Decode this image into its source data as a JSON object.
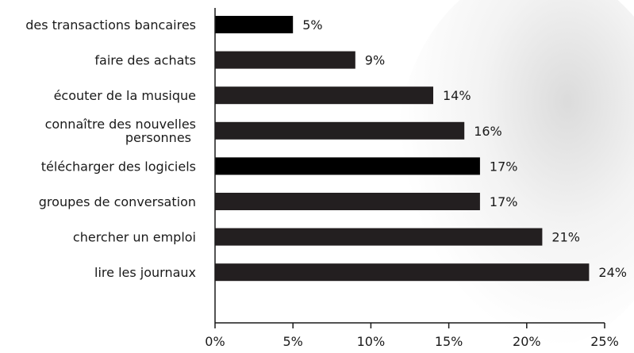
{
  "chart_data": {
    "type": "bar",
    "orientation": "horizontal",
    "categories": [
      "des transactions bancaires",
      "faire des achats",
      "écouter de la musique",
      [
        "connaître des nouvelles",
        "personnes"
      ],
      "télécharger des logiciels",
      "groupes de conversation",
      "chercher un emploi",
      "lire les journaux"
    ],
    "values": [
      5,
      9,
      14,
      16,
      17,
      17,
      21,
      24
    ],
    "value_labels": [
      "5%",
      "9%",
      "14%",
      "16%",
      "17%",
      "17%",
      "21%",
      "24%"
    ],
    "bar_colors": [
      "#000000",
      "#231f20",
      "#231f20",
      "#231f20",
      "#000000",
      "#231f20",
      "#231f20",
      "#231f20"
    ],
    "xlim": [
      0,
      25
    ],
    "xticks": [
      0,
      5,
      10,
      15,
      20,
      25
    ],
    "xtick_labels": [
      "0%",
      "5%",
      "10%",
      "15%",
      "20%",
      "25%"
    ],
    "title": "",
    "xlabel": "",
    "ylabel": "",
    "grid": false,
    "legend": "none"
  }
}
